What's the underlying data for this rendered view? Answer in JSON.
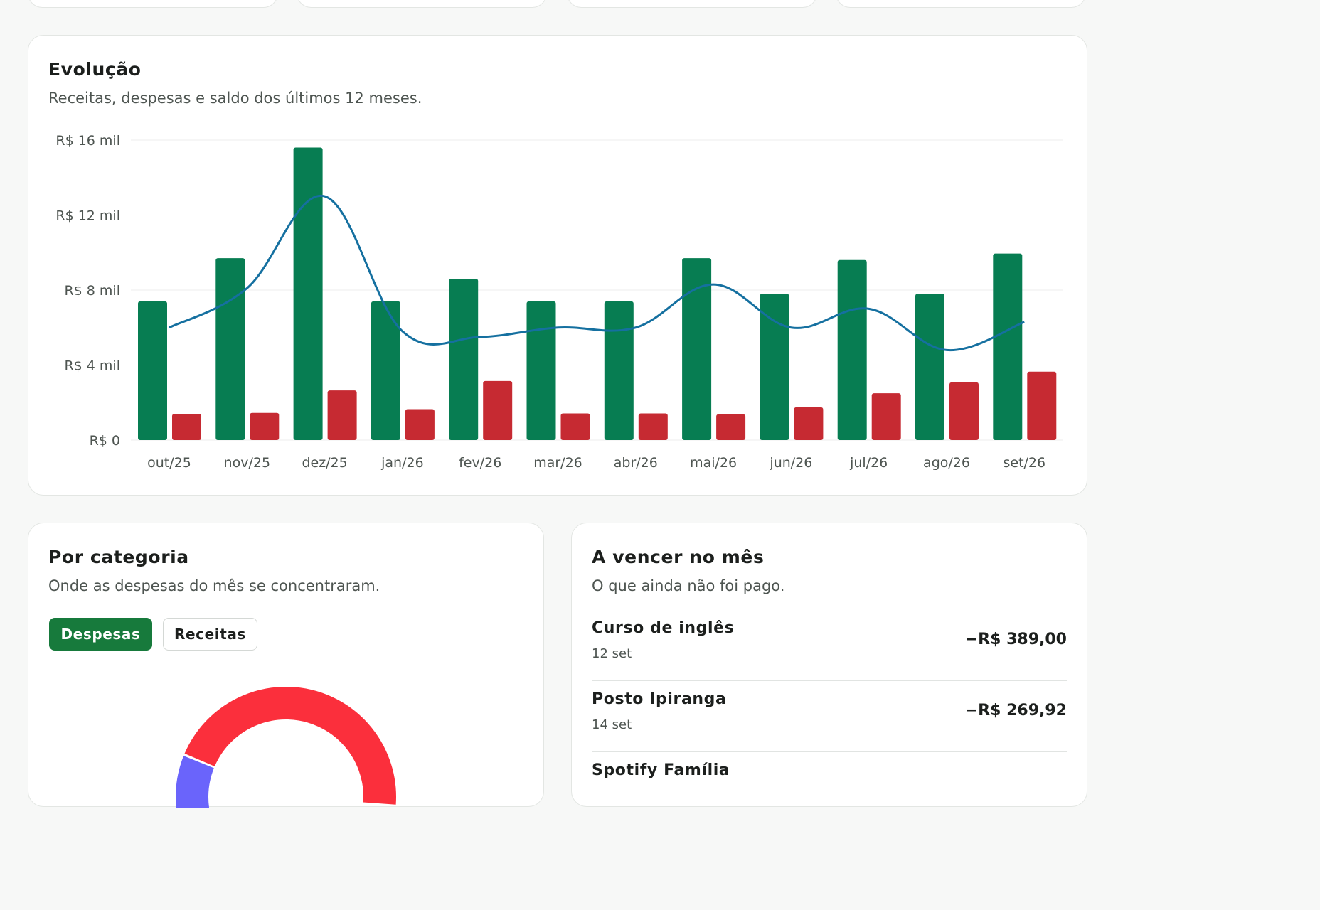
{
  "colors": {
    "receitas": "#077d52",
    "despesas": "#c62a32",
    "saldo": "#1570a0",
    "grid": "#ececec",
    "toggle_active": "#177a3c"
  },
  "evolution": {
    "title": "Evolução",
    "subtitle": "Receitas, despesas e saldo dos últimos 12 meses."
  },
  "chart_data": {
    "type": "bar",
    "categories": [
      "out/25",
      "nov/25",
      "dez/25",
      "jan/26",
      "fev/26",
      "mar/26",
      "abr/26",
      "mai/26",
      "jun/26",
      "jul/26",
      "ago/26",
      "set/26"
    ],
    "series": [
      {
        "kind": "bar",
        "values": [
          7400,
          9700,
          15600,
          7400,
          8600,
          7400,
          7400,
          9700,
          7800,
          9600,
          7800,
          9950
        ]
      },
      {
        "kind": "bar",
        "values": [
          1400,
          1450,
          2650,
          1650,
          3150,
          1420,
          1420,
          1380,
          1750,
          2500,
          3080,
          3650
        ]
      },
      {
        "kind": "line",
        "values": [
          6000,
          8100,
          13000,
          5800,
          5500,
          6000,
          6000,
          8300,
          6000,
          7000,
          4800,
          6300
        ]
      }
    ],
    "yticks": [
      "R$ 0",
      "R$ 4 mil",
      "R$ 8 mil",
      "R$ 12 mil",
      "R$ 16 mil"
    ],
    "ylim": [
      0,
      16000
    ],
    "grid": true
  },
  "category": {
    "title": "Por categoria",
    "subtitle": "Onde as despesas do mês se concentraram.",
    "toggles": {
      "despesas": "Despesas",
      "receitas": "Receitas"
    },
    "donut": [
      {
        "color": "#6a64fb",
        "share": 0.12
      },
      {
        "color": "#fb2f3c",
        "share": 0.45
      }
    ]
  },
  "due": {
    "title": "A vencer no mês",
    "subtitle": "O que ainda não foi pago.",
    "items": [
      {
        "name": "Curso de inglês",
        "date": "12 set",
        "amount": "−R$ 389,00"
      },
      {
        "name": "Posto Ipiranga",
        "date": "14 set",
        "amount": "−R$ 269,92"
      },
      {
        "name": "Spotify Família",
        "date": "",
        "amount": ""
      }
    ]
  }
}
